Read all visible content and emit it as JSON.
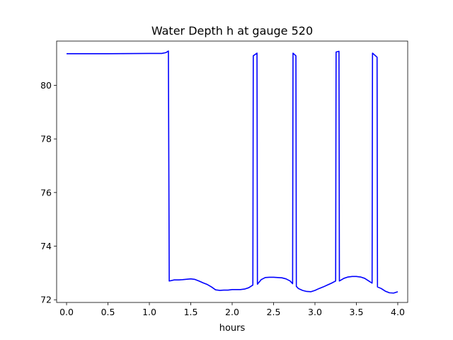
{
  "chart_data": {
    "type": "line",
    "title": "Water Depth h at gauge 520",
    "xlabel": "hours",
    "ylabel": "",
    "xlim": [
      -0.12,
      4.12
    ],
    "ylim": [
      71.9,
      81.65
    ],
    "xticks": [
      0.0,
      0.5,
      1.0,
      1.5,
      2.0,
      2.5,
      3.0,
      3.5,
      4.0
    ],
    "xtick_labels": [
      "0.0",
      "0.5",
      "1.0",
      "1.5",
      "2.0",
      "2.5",
      "3.0",
      "3.5",
      "4.0"
    ],
    "yticks": [
      72,
      74,
      76,
      78,
      80
    ],
    "ytick_labels": [
      "72",
      "74",
      "76",
      "78",
      "80"
    ],
    "grid": false,
    "series": [
      {
        "color": "#0000ff",
        "x": [
          0.0,
          0.5,
          1.0,
          1.15,
          1.2,
          1.23,
          1.24,
          1.3,
          1.35,
          1.4,
          1.5,
          1.55,
          1.6,
          1.65,
          1.7,
          1.75,
          1.8,
          1.85,
          1.9,
          1.95,
          2.0,
          2.05,
          2.1,
          2.15,
          2.2,
          2.25,
          2.255,
          2.3,
          2.305,
          2.35,
          2.4,
          2.45,
          2.5,
          2.55,
          2.6,
          2.65,
          2.7,
          2.73,
          2.735,
          2.77,
          2.775,
          2.8,
          2.85,
          2.9,
          2.95,
          3.0,
          3.05,
          3.1,
          3.15,
          3.2,
          3.25,
          3.255,
          3.29,
          3.295,
          3.35,
          3.4,
          3.45,
          3.5,
          3.55,
          3.6,
          3.65,
          3.69,
          3.695,
          3.75,
          3.755,
          3.8,
          3.85,
          3.9,
          3.95,
          4.0
        ],
        "y": [
          81.18,
          81.18,
          81.19,
          81.19,
          81.22,
          81.28,
          72.7,
          72.74,
          72.74,
          72.75,
          72.78,
          72.76,
          72.7,
          72.63,
          72.57,
          72.48,
          72.37,
          72.35,
          72.36,
          72.36,
          72.38,
          72.38,
          72.38,
          72.4,
          72.45,
          72.55,
          81.1,
          81.2,
          72.58,
          72.75,
          72.83,
          72.84,
          72.84,
          72.83,
          72.82,
          72.78,
          72.7,
          72.6,
          81.2,
          81.1,
          72.5,
          72.42,
          72.35,
          72.31,
          72.3,
          72.35,
          72.42,
          72.48,
          72.55,
          72.62,
          72.7,
          81.24,
          81.27,
          72.7,
          72.8,
          72.85,
          72.87,
          72.87,
          72.85,
          72.8,
          72.7,
          72.62,
          81.2,
          81.05,
          72.48,
          72.42,
          72.32,
          72.26,
          72.25,
          72.3
        ]
      }
    ]
  }
}
